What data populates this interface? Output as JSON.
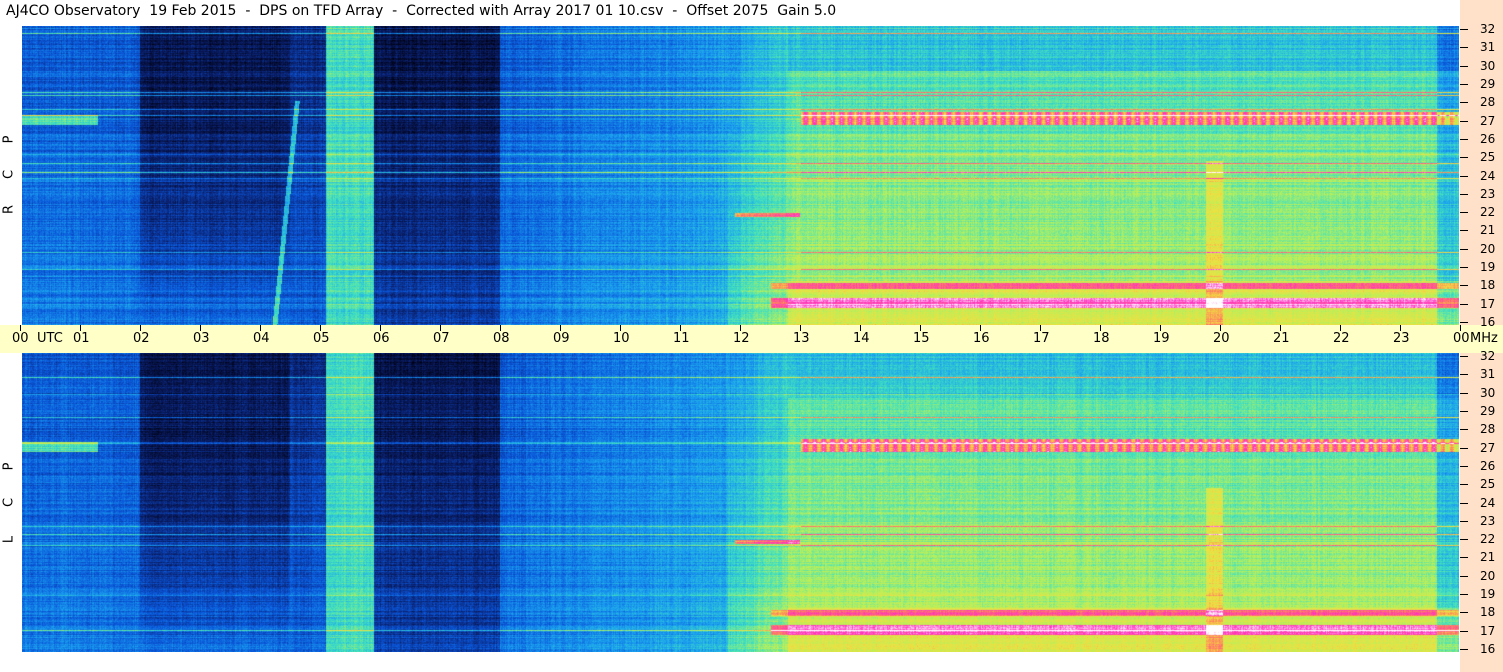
{
  "title": "AJ4CO Observatory  19 Feb 2015  -  DPS on TFD Array  -  Corrected with Array 2017 01 10.csv  -  Offset 2075  Gain 5.0",
  "chart_data": {
    "type": "heatmap",
    "x_axis": {
      "unit_label": "UTC",
      "ticks": [
        "00",
        "01",
        "02",
        "03",
        "04",
        "05",
        "06",
        "07",
        "08",
        "09",
        "10",
        "11",
        "12",
        "13",
        "14",
        "15",
        "16",
        "17",
        "18",
        "19",
        "20",
        "21",
        "22",
        "23",
        "00"
      ]
    },
    "y_axis": {
      "unit_label": "MHz",
      "range": [
        16,
        32
      ],
      "ticks": [
        "32",
        "31",
        "30",
        "29",
        "28",
        "27",
        "26",
        "25",
        "24",
        "23",
        "22",
        "21",
        "20",
        "19",
        "18",
        "17",
        "16"
      ]
    },
    "panels": [
      {
        "name": "top",
        "polarization_letters": [
          "P",
          "C",
          "R"
        ]
      },
      {
        "name": "bottom",
        "polarization_letters": [
          "P",
          "C",
          "L"
        ]
      }
    ],
    "colormap": [
      "#000010",
      "#0a1f6a",
      "#0a55d8",
      "#1aa0f0",
      "#40e0c0",
      "#b8f05a",
      "#f0e040",
      "#ff8060",
      "#ff30c0",
      "#ffffff"
    ]
  }
}
